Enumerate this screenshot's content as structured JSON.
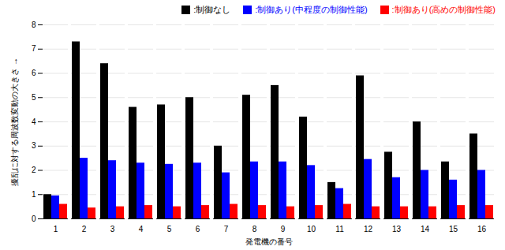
{
  "chart_data": {
    "type": "bar",
    "categories": [
      1,
      2,
      3,
      4,
      5,
      6,
      7,
      8,
      9,
      10,
      11,
      12,
      13,
      14,
      15,
      16
    ],
    "series": [
      {
        "name": ":制御なし",
        "color": "#000000",
        "values": [
          1.0,
          7.3,
          6.4,
          4.6,
          4.7,
          5.0,
          3.0,
          5.1,
          5.5,
          4.2,
          1.5,
          5.9,
          2.75,
          4.0,
          2.35,
          3.5
        ]
      },
      {
        "name": ":制御あり(中程度の制御性能)",
        "color": "#0000ff",
        "values": [
          0.95,
          2.5,
          2.4,
          2.3,
          2.25,
          2.3,
          1.9,
          2.35,
          2.35,
          2.2,
          1.25,
          2.45,
          1.7,
          2.0,
          1.6,
          2.0
        ]
      },
      {
        "name": ":制御あり(高めの制御性能)",
        "color": "#ff0000",
        "values": [
          0.6,
          0.45,
          0.5,
          0.55,
          0.5,
          0.55,
          0.6,
          0.55,
          0.5,
          0.55,
          0.6,
          0.5,
          0.5,
          0.5,
          0.55,
          0.55
        ]
      }
    ],
    "xlabel": "発電機の番号",
    "ylabel": "擾乱に対する周波数変動の大きさ",
    "ylim": [
      0,
      8
    ],
    "yticks": [
      0,
      1,
      2,
      3,
      4,
      5,
      6,
      7,
      8
    ],
    "grid": true,
    "legend": "upper right"
  }
}
